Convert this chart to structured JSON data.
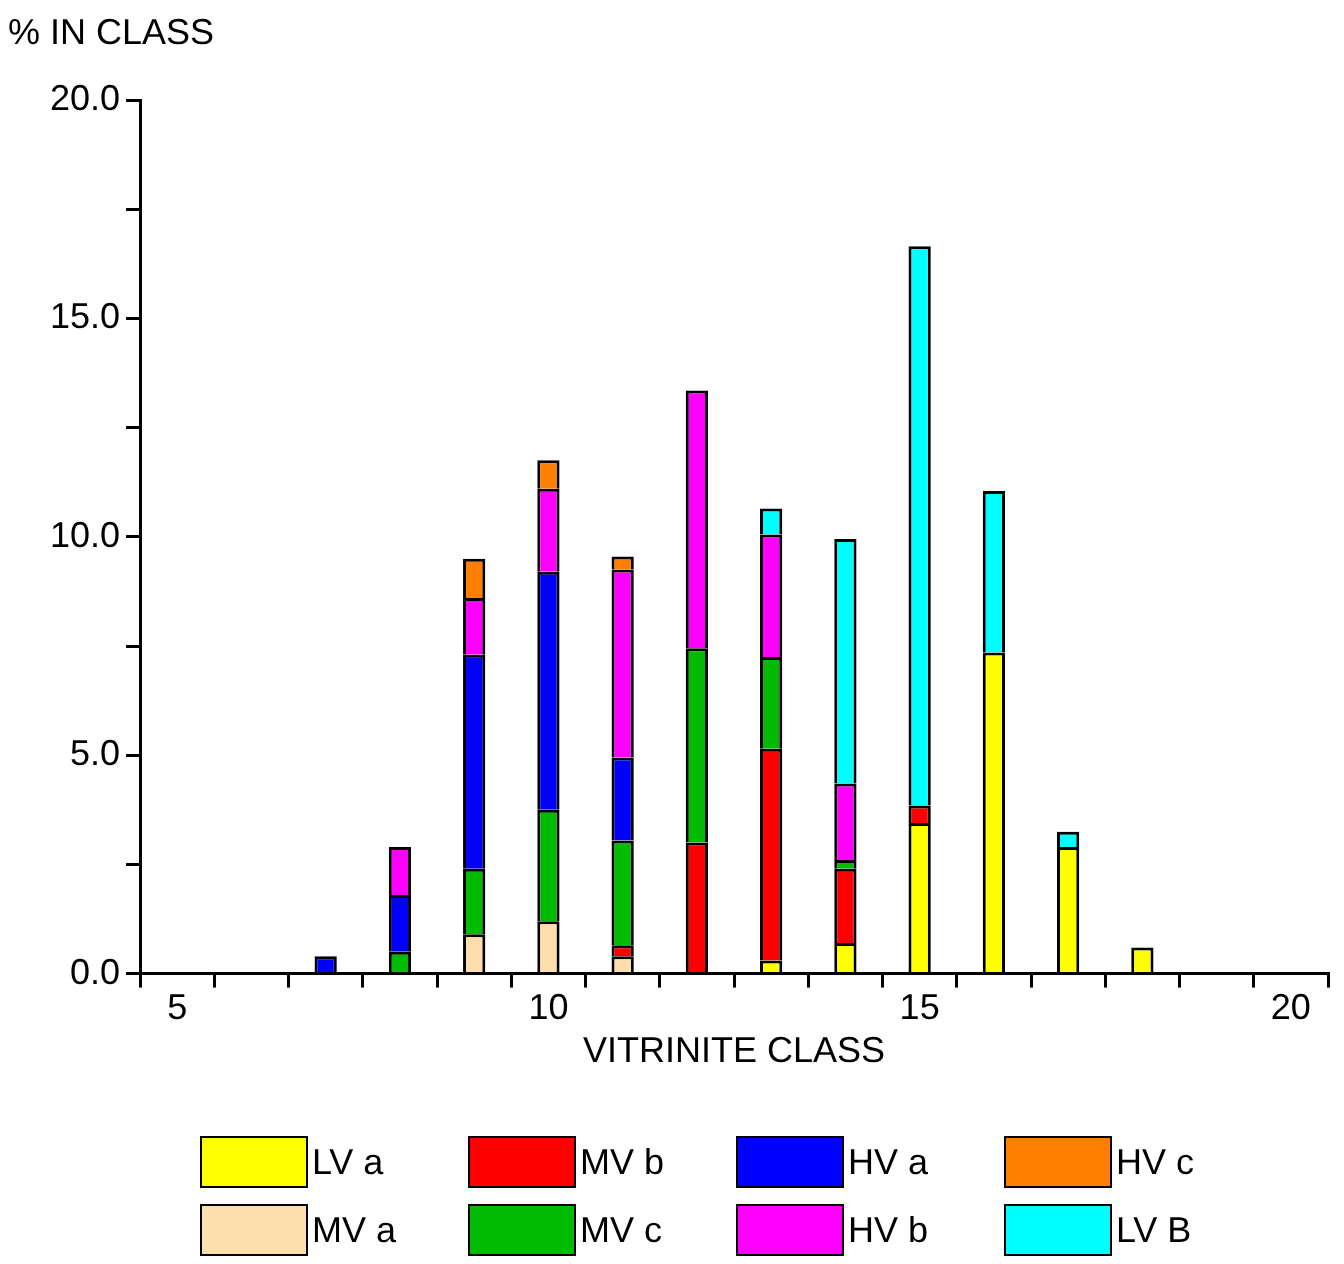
{
  "chart_data": {
    "type": "bar",
    "stacked": true,
    "ylabel": "% IN CLASS",
    "xlabel": "VITRINITE CLASS",
    "x": [
      7,
      8,
      9,
      10,
      11,
      12,
      13,
      14,
      15,
      16,
      17,
      18
    ],
    "xlim": [
      4.5,
      20.5
    ],
    "xticks": [
      {
        "value": 4.5,
        "label": null
      },
      5,
      {
        "value": 5.5,
        "label": null
      },
      {
        "value": 6.5,
        "label": null
      },
      {
        "value": 7.5,
        "label": null
      },
      {
        "value": 8.5,
        "label": null
      },
      {
        "value": 9.5,
        "label": null
      },
      10,
      {
        "value": 10.5,
        "label": null
      },
      {
        "value": 11.5,
        "label": null
      },
      {
        "value": 12.5,
        "label": null
      },
      {
        "value": 13.5,
        "label": null
      },
      {
        "value": 14.5,
        "label": null
      },
      15,
      {
        "value": 15.5,
        "label": null
      },
      {
        "value": 16.5,
        "label": null
      },
      {
        "value": 17.5,
        "label": null
      },
      {
        "value": 18.5,
        "label": null
      },
      {
        "value": 19.5,
        "label": null
      },
      20,
      {
        "value": 20.5,
        "label": null
      }
    ],
    "ylim": [
      0,
      20
    ],
    "yticks": [
      {
        "value": 0,
        "label": "0.0"
      },
      {
        "value": 2.5,
        "label": null
      },
      {
        "value": 5,
        "label": "5.0"
      },
      {
        "value": 7.5,
        "label": null
      },
      {
        "value": 10,
        "label": "10.0"
      },
      {
        "value": 12.5,
        "label": null
      },
      {
        "value": 15,
        "label": "15.0"
      },
      {
        "value": 17.5,
        "label": null
      },
      {
        "value": 20,
        "label": "20.0"
      }
    ],
    "grid": false,
    "legend": "bottom",
    "series": [
      {
        "name": "LV a",
        "color": "#ffff00",
        "values": [
          null,
          null,
          null,
          null,
          null,
          null,
          0.3,
          0.7,
          3.45,
          7.35,
          2.9,
          0.6
        ]
      },
      {
        "name": "MV a",
        "color": "#ffdead",
        "values": [
          null,
          null,
          0.9,
          1.2,
          0.4,
          null,
          null,
          null,
          null,
          null,
          null,
          null
        ]
      },
      {
        "name": "MV b",
        "color": "#ff0000",
        "values": [
          null,
          null,
          null,
          null,
          0.25,
          3.0,
          4.85,
          1.7,
          0.4,
          null,
          null,
          null
        ]
      },
      {
        "name": "MV c",
        "color": "#00bb00",
        "values": [
          null,
          0.5,
          1.5,
          2.55,
          2.4,
          4.45,
          2.1,
          0.2,
          null,
          null,
          null,
          null
        ]
      },
      {
        "name": "HV a",
        "color": "#0000ff",
        "values": [
          0.4,
          1.3,
          4.9,
          5.45,
          1.9,
          null,
          null,
          null,
          null,
          null,
          null,
          null
        ]
      },
      {
        "name": "HV b",
        "color": "#ff00ff",
        "values": [
          null,
          1.1,
          1.3,
          1.9,
          4.3,
          5.9,
          2.8,
          1.75,
          null,
          null,
          null,
          null
        ]
      },
      {
        "name": "HV c",
        "color": "#ff8000",
        "values": [
          null,
          null,
          0.9,
          0.65,
          0.3,
          null,
          null,
          null,
          null,
          null,
          null,
          null
        ]
      },
      {
        "name": "LV B",
        "color": "#00ffff",
        "values": [
          null,
          null,
          null,
          null,
          null,
          null,
          0.6,
          5.6,
          12.8,
          3.7,
          0.35,
          null
        ]
      }
    ]
  }
}
